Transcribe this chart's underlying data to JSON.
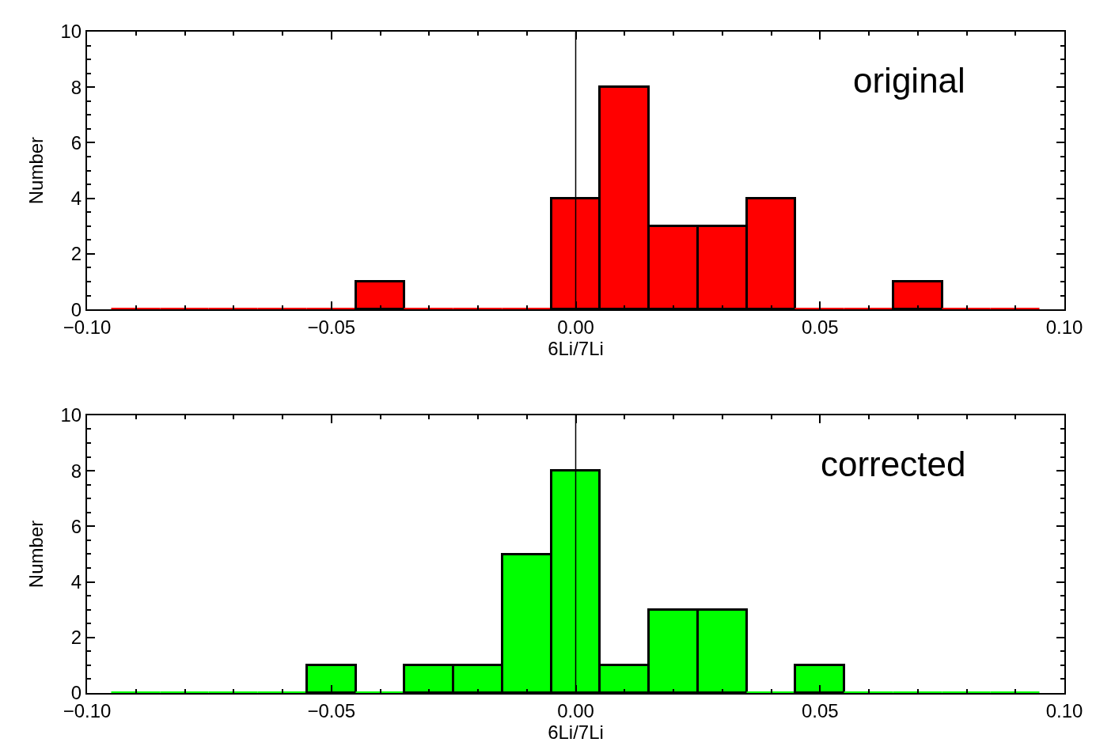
{
  "chart_data": [
    {
      "type": "histogram",
      "xlabel": "6Li/7Li",
      "ylabel": "Number",
      "annotations": [
        "original"
      ],
      "color": "#ff0000",
      "bins": [
        -0.095,
        -0.085,
        -0.075,
        -0.065,
        -0.055,
        -0.045,
        -0.035,
        -0.025,
        -0.015,
        -0.005,
        0.005,
        0.015,
        0.025,
        0.035,
        0.045,
        0.055,
        0.065,
        0.075,
        0.085,
        0.095
      ],
      "values": [
        0,
        0,
        0,
        0,
        0,
        1,
        0,
        0,
        0,
        4,
        8,
        3,
        3,
        4,
        0,
        0,
        1,
        0,
        0
      ],
      "xlim": [
        -0.1,
        0.1
      ],
      "xticks": [
        {
          "value": -0.1,
          "label": "−0.10"
        },
        {
          "value": -0.05,
          "label": "−0.05"
        },
        {
          "value": 0,
          "label": "0.00"
        },
        {
          "value": 0.05,
          "label": "0.05"
        },
        {
          "value": 0.1,
          "label": "0.10"
        }
      ],
      "ylim": [
        0,
        10
      ],
      "yticks": [
        0,
        2,
        4,
        6,
        8,
        10
      ],
      "ref_lines": [
        {
          "axis": "x",
          "value": 0,
          "color": "#000000"
        }
      ]
    },
    {
      "type": "histogram",
      "xlabel": "6Li/7Li",
      "ylabel": "Number",
      "annotations": [
        "corrected"
      ],
      "color": "#00ff00",
      "bins": [
        -0.095,
        -0.085,
        -0.075,
        -0.065,
        -0.055,
        -0.045,
        -0.035,
        -0.025,
        -0.015,
        -0.005,
        0.005,
        0.015,
        0.025,
        0.035,
        0.045,
        0.055,
        0.065,
        0.075,
        0.085,
        0.095
      ],
      "values": [
        0,
        0,
        0,
        0,
        1,
        0,
        1,
        1,
        5,
        8,
        1,
        3,
        3,
        0,
        1,
        0,
        0,
        0,
        0
      ],
      "xlim": [
        -0.1,
        0.1
      ],
      "xticks": [
        {
          "value": -0.1,
          "label": "−0.10"
        },
        {
          "value": -0.05,
          "label": "−0.05"
        },
        {
          "value": 0,
          "label": "0.00"
        },
        {
          "value": 0.05,
          "label": "0.05"
        },
        {
          "value": 0.1,
          "label": "0.10"
        }
      ],
      "ylim": [
        0,
        10
      ],
      "yticks": [
        0,
        2,
        4,
        6,
        8,
        10
      ],
      "ref_lines": [
        {
          "axis": "x",
          "value": 0,
          "color": "#000000"
        }
      ]
    }
  ]
}
